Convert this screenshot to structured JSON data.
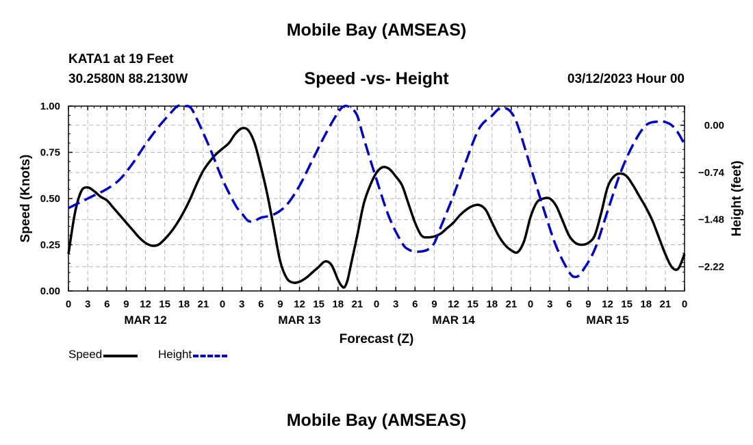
{
  "page": {
    "top_title": "Mobile Bay (AMSEAS)",
    "station": "KATA1 at 19 Feet",
    "coords": "30.2580N  88.2130W",
    "subtitle": "Speed -vs- Height",
    "datetime": "03/12/2023 Hour 00",
    "bottom_title": "Mobile Bay (AMSEAS)"
  },
  "colors": {
    "speed": "#000000",
    "height": "#0000c0",
    "grid": "#b4b4b4"
  },
  "legend": [
    {
      "label": "Speed",
      "color": "#000000",
      "style": "solid"
    },
    {
      "label": "Height",
      "color": "#0000c0",
      "style": "dashed"
    }
  ],
  "chart_data": {
    "type": "line",
    "title": "Speed -vs- Height",
    "xlabel": "Forecast (Z)",
    "ylabel": "Speed (Knots)",
    "y2label": "Height (feet)",
    "xlim": [
      0,
      96
    ],
    "ylim": [
      0,
      1
    ],
    "y2lim": [
      -2.6,
      0.3
    ],
    "grid": true,
    "yticks": [
      0,
      0.25,
      0.5,
      0.75,
      1.0
    ],
    "ytick_labels": [
      "0.00",
      "0.25",
      "0.50",
      "0.75",
      "1.00"
    ],
    "y2ticks": [
      0,
      -0.74,
      -1.48,
      -2.22
    ],
    "y2tick_labels": [
      "0.00",
      "−0.74",
      "−1.48",
      "−2.22"
    ],
    "xticks": [
      0,
      3,
      6,
      9,
      12,
      15,
      18,
      21,
      24,
      27,
      30,
      33,
      36,
      39,
      42,
      45,
      48,
      51,
      54,
      57,
      60,
      63,
      66,
      69,
      72,
      75,
      78,
      81,
      84,
      87,
      90,
      93,
      96
    ],
    "xtick_labels": [
      "0",
      "3",
      "6",
      "9",
      "12",
      "15",
      "18",
      "21",
      "0",
      "3",
      "6",
      "9",
      "12",
      "15",
      "18",
      "21",
      "0",
      "3",
      "6",
      "9",
      "12",
      "15",
      "18",
      "21",
      "0",
      "3",
      "6",
      "9",
      "12",
      "15",
      "18",
      "21",
      "0"
    ],
    "day_labels": [
      {
        "x": 12,
        "label": "MAR 12"
      },
      {
        "x": 36,
        "label": "MAR 13"
      },
      {
        "x": 60,
        "label": "MAR 14"
      },
      {
        "x": 84,
        "label": "MAR 15"
      }
    ],
    "series": [
      {
        "name": "Speed",
        "axis": "left",
        "style": "solid",
        "points": [
          [
            0,
            0.2
          ],
          [
            1,
            0.42
          ],
          [
            2,
            0.54
          ],
          [
            3,
            0.56
          ],
          [
            4,
            0.54
          ],
          [
            5,
            0.51
          ],
          [
            6,
            0.49
          ],
          [
            7,
            0.45
          ],
          [
            8,
            0.41
          ],
          [
            9,
            0.37
          ],
          [
            10,
            0.33
          ],
          [
            11,
            0.29
          ],
          [
            12,
            0.26
          ],
          [
            13,
            0.245
          ],
          [
            14,
            0.25
          ],
          [
            15,
            0.28
          ],
          [
            16,
            0.32
          ],
          [
            17,
            0.37
          ],
          [
            18,
            0.43
          ],
          [
            19,
            0.5
          ],
          [
            20,
            0.58
          ],
          [
            21,
            0.65
          ],
          [
            22,
            0.7
          ],
          [
            23,
            0.74
          ],
          [
            24,
            0.77
          ],
          [
            25,
            0.8
          ],
          [
            26,
            0.85
          ],
          [
            27,
            0.88
          ],
          [
            28,
            0.87
          ],
          [
            29,
            0.8
          ],
          [
            30,
            0.67
          ],
          [
            31,
            0.52
          ],
          [
            32,
            0.34
          ],
          [
            33,
            0.16
          ],
          [
            34,
            0.07
          ],
          [
            35,
            0.045
          ],
          [
            36,
            0.05
          ],
          [
            37,
            0.07
          ],
          [
            38,
            0.1
          ],
          [
            39,
            0.13
          ],
          [
            40,
            0.16
          ],
          [
            41,
            0.14
          ],
          [
            42,
            0.06
          ],
          [
            42.5,
            0.03
          ],
          [
            43,
            0.02
          ],
          [
            43.5,
            0.06
          ],
          [
            44,
            0.14
          ],
          [
            45,
            0.3
          ],
          [
            46,
            0.47
          ],
          [
            47,
            0.57
          ],
          [
            48,
            0.64
          ],
          [
            49,
            0.67
          ],
          [
            50,
            0.66
          ],
          [
            51,
            0.62
          ],
          [
            52,
            0.57
          ],
          [
            53,
            0.47
          ],
          [
            54,
            0.37
          ],
          [
            55,
            0.3
          ],
          [
            56,
            0.29
          ],
          [
            57,
            0.295
          ],
          [
            58,
            0.31
          ],
          [
            59,
            0.34
          ],
          [
            60,
            0.37
          ],
          [
            61,
            0.41
          ],
          [
            62,
            0.44
          ],
          [
            63,
            0.46
          ],
          [
            64,
            0.465
          ],
          [
            65,
            0.44
          ],
          [
            66,
            0.37
          ],
          [
            67,
            0.3
          ],
          [
            68,
            0.25
          ],
          [
            69,
            0.22
          ],
          [
            70,
            0.21
          ],
          [
            71,
            0.27
          ],
          [
            72,
            0.4
          ],
          [
            73,
            0.48
          ],
          [
            74,
            0.5
          ],
          [
            75,
            0.5
          ],
          [
            76,
            0.46
          ],
          [
            77,
            0.38
          ],
          [
            78,
            0.3
          ],
          [
            79,
            0.26
          ],
          [
            80,
            0.25
          ],
          [
            81,
            0.26
          ],
          [
            82,
            0.3
          ],
          [
            83,
            0.42
          ],
          [
            84,
            0.56
          ],
          [
            85,
            0.62
          ],
          [
            86,
            0.635
          ],
          [
            87,
            0.62
          ],
          [
            88,
            0.57
          ],
          [
            89,
            0.51
          ],
          [
            90,
            0.45
          ],
          [
            91,
            0.38
          ],
          [
            92,
            0.29
          ],
          [
            93,
            0.2
          ],
          [
            94,
            0.13
          ],
          [
            95,
            0.12
          ],
          [
            96,
            0.2
          ]
        ]
      },
      {
        "name": "Height",
        "axis": "right",
        "style": "dashed",
        "points": [
          [
            0,
            -1.3
          ],
          [
            2,
            -1.2
          ],
          [
            4,
            -1.1
          ],
          [
            6,
            -1.0
          ],
          [
            8,
            -0.85
          ],
          [
            10,
            -0.6
          ],
          [
            12,
            -0.3
          ],
          [
            14,
            -0.03
          ],
          [
            16,
            0.2
          ],
          [
            17,
            0.3
          ],
          [
            18,
            0.32
          ],
          [
            19,
            0.28
          ],
          [
            20,
            0.1
          ],
          [
            22,
            -0.35
          ],
          [
            24,
            -0.85
          ],
          [
            26,
            -1.25
          ],
          [
            27,
            -1.38
          ],
          [
            28,
            -1.5
          ],
          [
            29,
            -1.5
          ],
          [
            30,
            -1.45
          ],
          [
            32,
            -1.4
          ],
          [
            34,
            -1.25
          ],
          [
            36,
            -0.95
          ],
          [
            38,
            -0.55
          ],
          [
            40,
            -0.15
          ],
          [
            42,
            0.2
          ],
          [
            43,
            0.3
          ],
          [
            44,
            0.27
          ],
          [
            45,
            0.15
          ],
          [
            46,
            -0.2
          ],
          [
            48,
            -0.85
          ],
          [
            50,
            -1.45
          ],
          [
            52,
            -1.85
          ],
          [
            53,
            -1.95
          ],
          [
            54,
            -1.98
          ],
          [
            55,
            -1.98
          ],
          [
            56,
            -1.95
          ],
          [
            57,
            -1.85
          ],
          [
            58,
            -1.6
          ],
          [
            60,
            -1.1
          ],
          [
            62,
            -0.55
          ],
          [
            64,
            -0.05
          ],
          [
            66,
            0.15
          ],
          [
            67,
            0.25
          ],
          [
            68,
            0.27
          ],
          [
            69,
            0.2
          ],
          [
            70,
            0.0
          ],
          [
            72,
            -0.65
          ],
          [
            74,
            -1.3
          ],
          [
            76,
            -1.9
          ],
          [
            78,
            -2.3
          ],
          [
            79,
            -2.38
          ],
          [
            80,
            -2.3
          ],
          [
            82,
            -1.95
          ],
          [
            84,
            -1.35
          ],
          [
            86,
            -0.75
          ],
          [
            88,
            -0.3
          ],
          [
            90,
            0.0
          ],
          [
            92,
            0.06
          ],
          [
            93,
            0.05
          ],
          [
            94,
            0.0
          ],
          [
            95,
            -0.12
          ],
          [
            96,
            -0.3
          ]
        ]
      }
    ]
  }
}
